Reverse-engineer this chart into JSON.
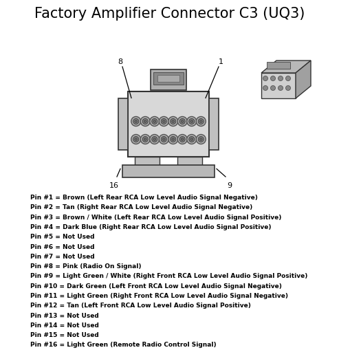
{
  "title": "Factory Amplifier Connector C3 (UQ3)",
  "title_fontsize": 15,
  "bg_color": "#ffffff",
  "text_color": "#000000",
  "pins": [
    "Pin #1 = Brown (Left Rear RCA Low Level Audio Signal Negative)",
    "Pin #2 = Tan (Right Rear RCA Low Level Audio Signal Negative)",
    "Pin #3 = Brown / White (Left Rear RCA Low Level Audio Signal Positive)",
    "Pin #4 = Dark Blue (Right Rear RCA Low Level Audio Signal Positive)",
    "Pin #5 = Not Used",
    "Pin #6 = Not Used",
    "Pin #7 = Not Used",
    "Pin #8 = Pink (Radio On Signal)",
    "Pin #9 = Light Green / White (Right Front RCA Low Level Audio Signal Positive)",
    "Pin #10 = Dark Green (Left Front RCA Low Level Audio Signal Negative)",
    "Pin #11 = Light Green (Right Front RCA Low Level Audio Signal Negative)",
    "Pin #12 = Tan (Left Front RCA Low Level Audio Signal Positive)",
    "Pin #13 = Not Used",
    "Pin #14 = Not Used",
    "Pin #15 = Not Used",
    "Pin #16 = Light Green (Remote Radio Control Signal)"
  ],
  "pin_fontsize": 6.5,
  "pin_fontweight": "bold",
  "fig_width": 4.93,
  "fig_height": 5.09,
  "dpi": 100
}
